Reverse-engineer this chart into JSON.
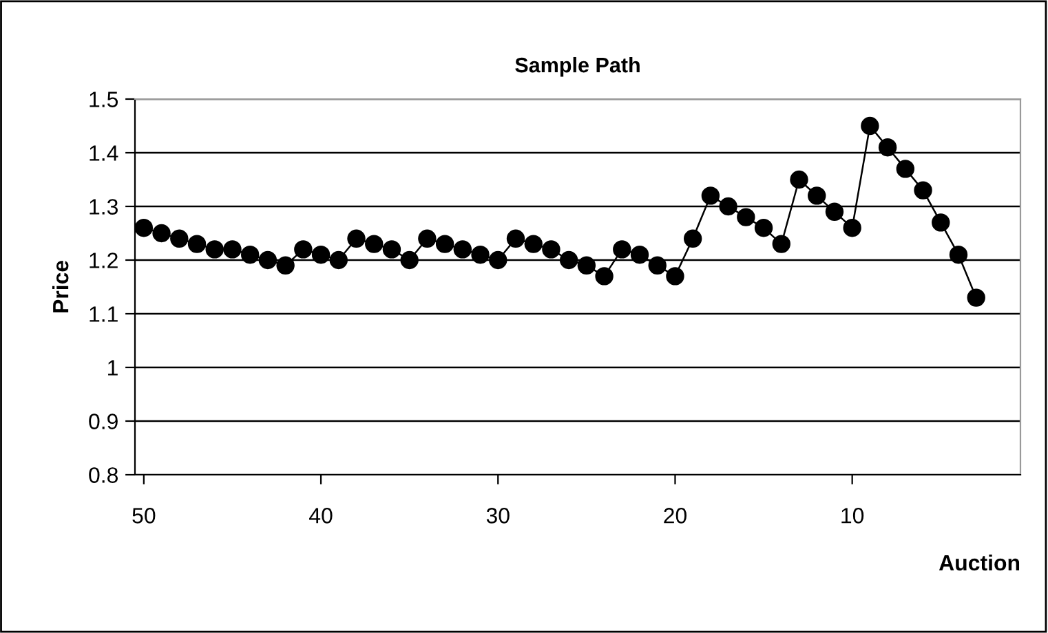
{
  "chart_data": {
    "type": "line",
    "title": "Sample Path",
    "xlabel": "Auction",
    "ylabel": "Price",
    "x": [
      50,
      49,
      48,
      47,
      46,
      45,
      44,
      43,
      42,
      41,
      40,
      39,
      38,
      37,
      36,
      35,
      34,
      33,
      32,
      31,
      30,
      29,
      28,
      27,
      26,
      25,
      24,
      23,
      22,
      21,
      20,
      19,
      18,
      17,
      16,
      15,
      14,
      13,
      12,
      11,
      10,
      9,
      8,
      7,
      6,
      5,
      4,
      3
    ],
    "series": [
      {
        "color": "#000000",
        "values": [
          1.26,
          1.25,
          1.24,
          1.23,
          1.22,
          1.22,
          1.21,
          1.2,
          1.19,
          1.22,
          1.21,
          1.2,
          1.24,
          1.23,
          1.22,
          1.2,
          1.24,
          1.23,
          1.22,
          1.21,
          1.2,
          1.24,
          1.23,
          1.22,
          1.2,
          1.19,
          1.17,
          1.22,
          1.21,
          1.19,
          1.17,
          1.24,
          1.32,
          1.3,
          1.28,
          1.26,
          1.23,
          1.35,
          1.32,
          1.29,
          1.26,
          1.45,
          1.41,
          1.37,
          1.33,
          1.27,
          1.21,
          1.13
        ]
      }
    ],
    "xlim": [
      50.5,
      0.5
    ],
    "xticks": [
      50,
      40,
      30,
      20,
      10
    ],
    "ylim": [
      0.8,
      1.5
    ],
    "yticks": [
      0.8,
      0.9,
      1,
      1.1,
      1.2,
      1.3,
      1.4,
      1.5
    ],
    "grid": "y",
    "legend": false,
    "marker": "circle",
    "line_style": "solid"
  }
}
